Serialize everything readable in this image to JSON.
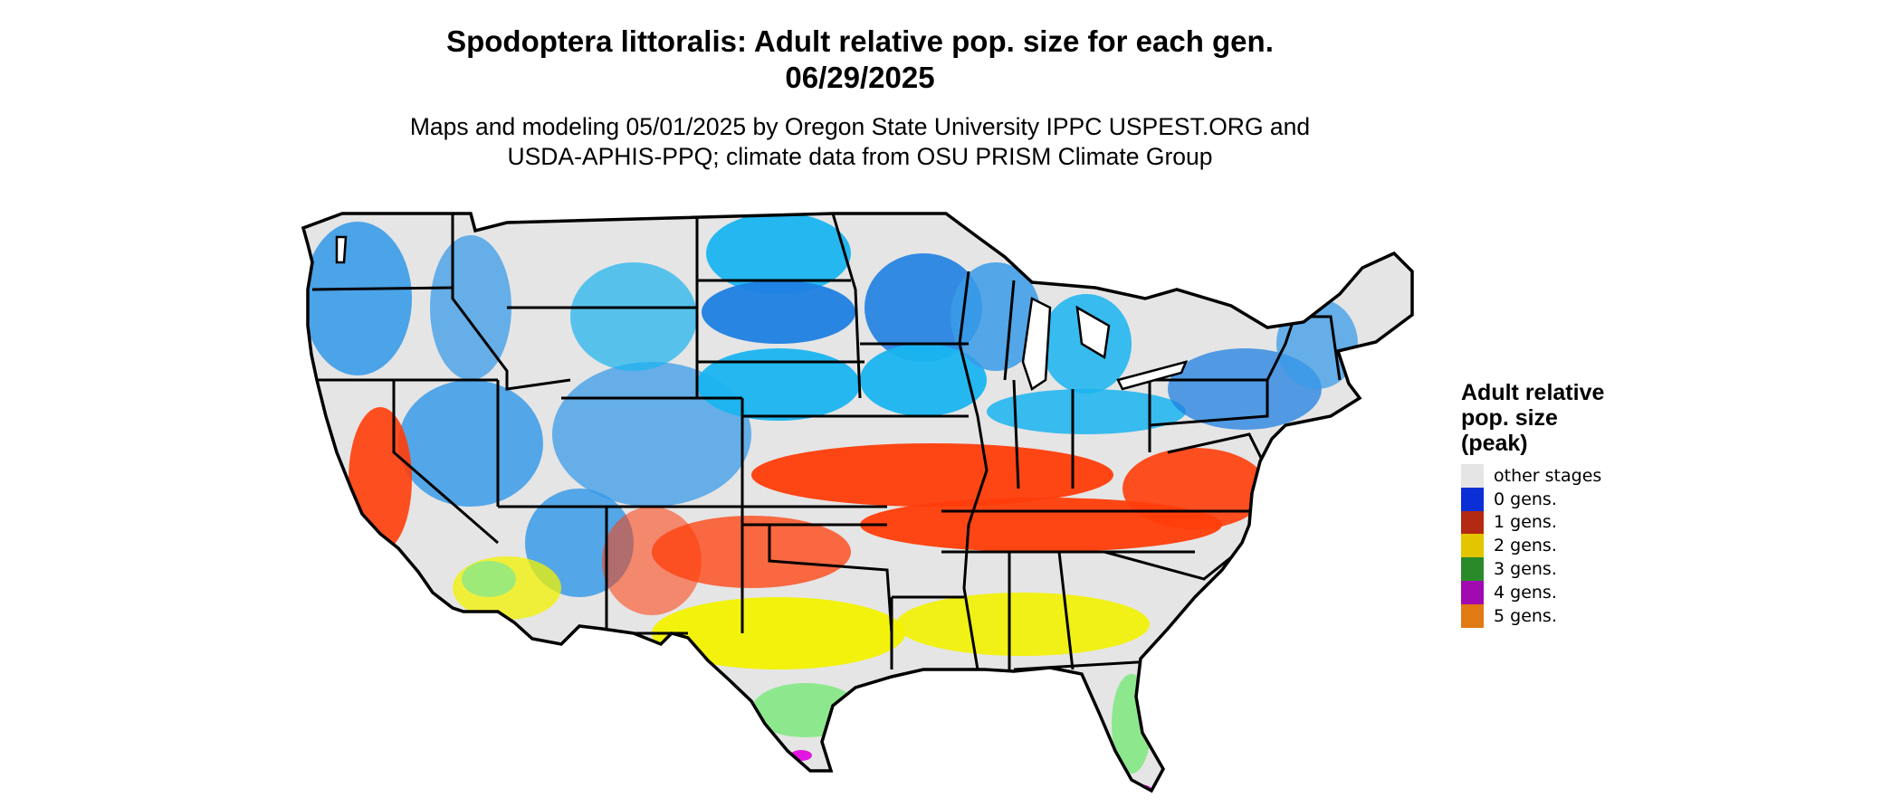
{
  "title": {
    "line1": "Spodoptera littoralis: Adult relative pop. size for each gen.",
    "line2": "06/29/2025"
  },
  "subtitle": {
    "line1": "Maps and modeling 05/01/2025 by Oregon State University IPPC USPEST.ORG and",
    "line2": "USDA-APHIS-PPQ; climate data from OSU PRISM Climate Group"
  },
  "legend": {
    "title_lines": [
      "Adult relative",
      "pop. size",
      "(peak)"
    ],
    "items": [
      {
        "label": "other stages",
        "color": "#e5e5e5"
      },
      {
        "label": "0 gens.",
        "color": "#0a2fd6"
      },
      {
        "label": "1 gens.",
        "color": "#b22a12"
      },
      {
        "label": "2 gens.",
        "color": "#e3c500"
      },
      {
        "label": "3 gens.",
        "color": "#2a8a2a"
      },
      {
        "label": "4 gens.",
        "color": "#a10ab0"
      },
      {
        "label": "5 gens.",
        "color": "#e07a12"
      }
    ]
  },
  "map_colors": {
    "background": "#e5e5e5",
    "zero_gens_light": "#1ab4f0",
    "zero_gens_mid": "#3a9be8",
    "zero_gens_dark": "#1f7fe2",
    "one_gen": "#ff3d0a",
    "two_gens": "#f2f200",
    "three_gens": "#88e888",
    "four_gens": "#e000e0",
    "border": "#000000"
  }
}
